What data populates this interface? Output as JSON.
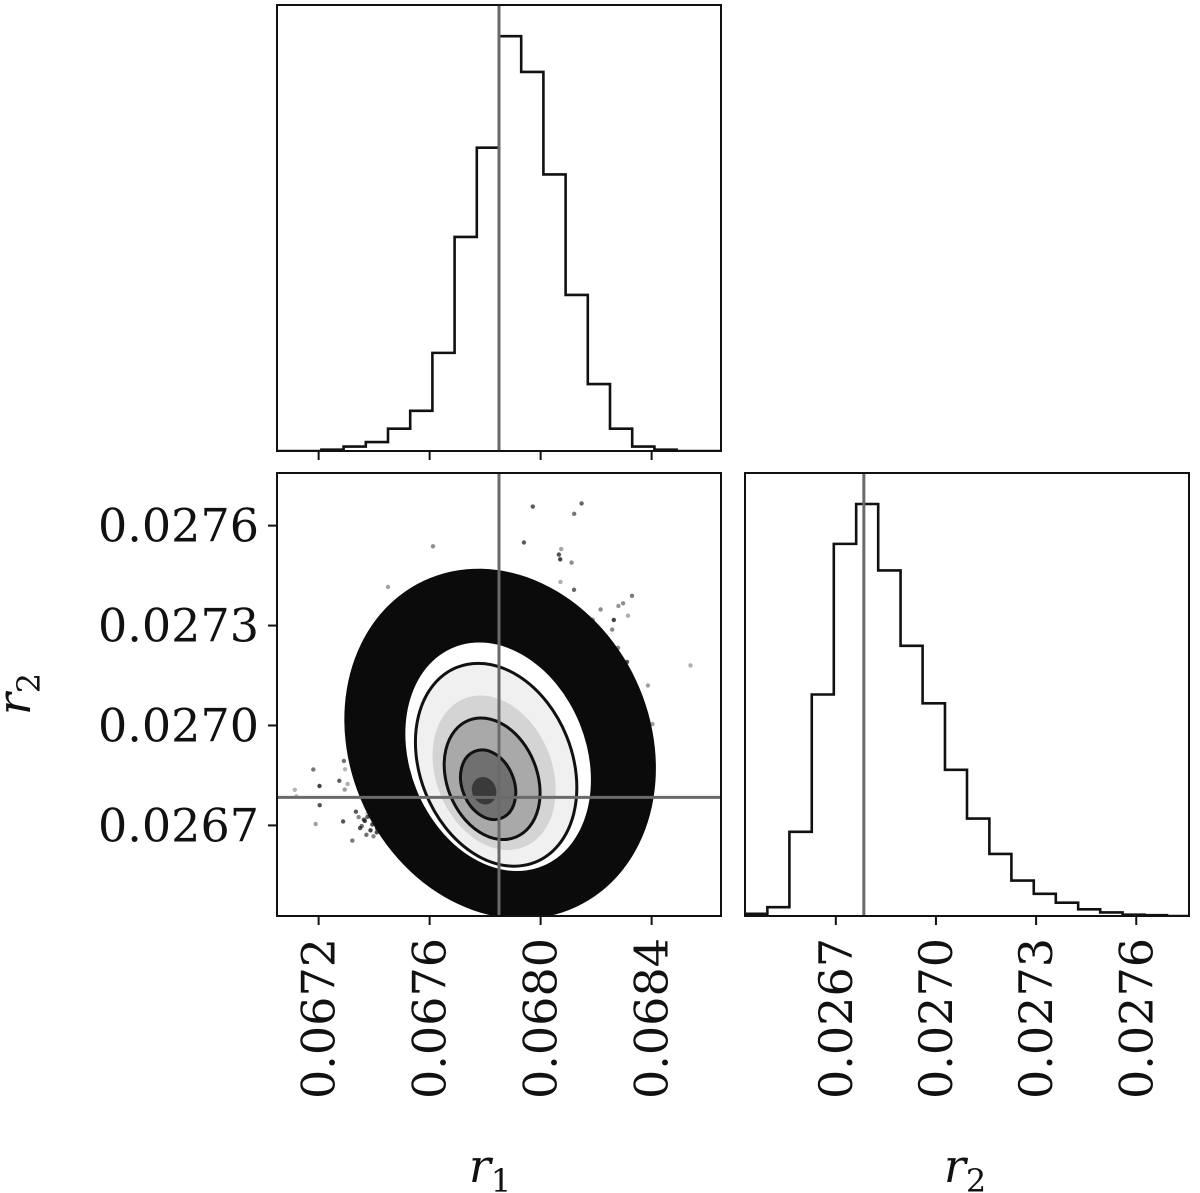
{
  "chart_data": {
    "type": "corner",
    "parameters": [
      {
        "symbol": "r",
        "subscript": "1",
        "truth": 0.06785,
        "range": [
          0.06705,
          0.06865
        ],
        "ticks": [
          "0.0672",
          "0.0676",
          "0.0680",
          "0.0684"
        ]
      },
      {
        "symbol": "r",
        "subscript": "2",
        "truth": 0.026784,
        "range": [
          0.026428,
          0.027758
        ],
        "ticks": [
          "0.0267",
          "0.0270",
          "0.0273",
          "0.0276"
        ]
      }
    ],
    "panels": [
      {
        "id": "hist_r1",
        "type": "histogram",
        "parameter": "r1",
        "bin_edges": [
          0.06705,
          0.06713,
          0.06721,
          0.06729,
          0.06737,
          0.06745,
          0.06753,
          0.06761,
          0.06769,
          0.06777,
          0.06785,
          0.06793,
          0.06801,
          0.06809,
          0.06817,
          0.06825,
          0.06833,
          0.06841,
          0.06849,
          0.06857,
          0.06865
        ],
        "counts": [
          0,
          0,
          0.003,
          0.01,
          0.02,
          0.05,
          0.09,
          0.22,
          0.48,
          0.68,
          0.93,
          0.85,
          0.62,
          0.35,
          0.15,
          0.05,
          0.01,
          0.003,
          0,
          0
        ],
        "truth": 0.06785
      },
      {
        "id": "joint_r1_r2",
        "type": "scatter-contour",
        "x": "r1",
        "y": "r2",
        "mode": {
          "r1": 0.0678,
          "r2": 0.02678
        },
        "truth": {
          "r1": 0.06785,
          "r2": 0.026784
        }
      },
      {
        "id": "hist_r2",
        "type": "histogram",
        "parameter": "r2",
        "bin_edges": [
          0.026428,
          0.026495,
          0.026561,
          0.026628,
          0.026694,
          0.026761,
          0.026827,
          0.026894,
          0.02696,
          0.027027,
          0.027093,
          0.02716,
          0.027226,
          0.027293,
          0.027359,
          0.027426,
          0.027492,
          0.027559,
          0.027625,
          0.027692,
          0.027758
        ],
        "counts": [
          0.005,
          0.02,
          0.19,
          0.5,
          0.84,
          0.93,
          0.78,
          0.61,
          0.48,
          0.33,
          0.22,
          0.14,
          0.08,
          0.05,
          0.03,
          0.015,
          0.008,
          0.003,
          0.002,
          0
        ],
        "truth": 0.026784
      }
    ],
    "xlabel": "r1",
    "ylabel": "r2"
  }
}
